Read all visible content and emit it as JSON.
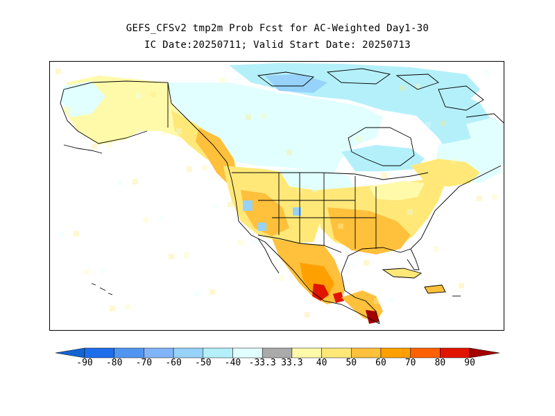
{
  "title": {
    "line1": "GEFS_CFSv2 tmp2m Prob Fcst for AC-Weighted Day1-30",
    "line2": "IC Date:20250711; Valid Start Date: 20250713"
  },
  "legend": {
    "labels": [
      "-90",
      "-80",
      "-70",
      "-60",
      "-50",
      "-40",
      "-33.3",
      "33.3",
      "40",
      "50",
      "60",
      "70",
      "80",
      "90"
    ],
    "colors": [
      "#1464d2",
      "#1e6eeb",
      "#5096f0",
      "#82b4fa",
      "#96d2fa",
      "#b4f0fa",
      "#e1ffff",
      "#aaaaaa",
      "#fffaaa",
      "#ffe878",
      "#ffc03c",
      "#ffa000",
      "#ff6000",
      "#e11400",
      "#a50000"
    ]
  },
  "map": {
    "region": "North America",
    "palette": {
      "ocean": "#ffffff",
      "light_blue": "#e1ffff",
      "blue": "#b4f0fa",
      "mid_blue": "#96d2fa",
      "pale_yellow": "#fffaaa",
      "yellow": "#ffe878",
      "orange": "#ffc03c",
      "dark_orange": "#ffa000",
      "red": "#e11400",
      "dark_red": "#a50000",
      "boundary": "#000000"
    }
  }
}
